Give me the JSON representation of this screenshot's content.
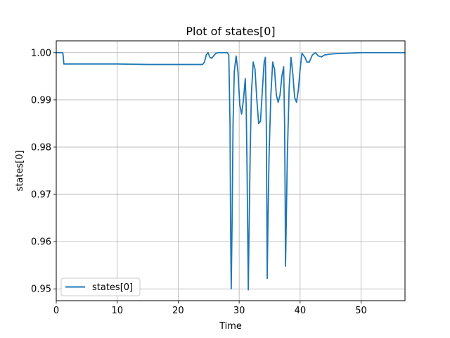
{
  "chart_data": {
    "type": "line",
    "title": "Plot of states[0]",
    "xlabel": "Time",
    "ylabel": "states[0]",
    "xlim": [
      0,
      57.2
    ],
    "ylim": [
      0.9475,
      1.0025
    ],
    "xticks": [
      0,
      10,
      20,
      30,
      40,
      50
    ],
    "yticks": [
      0.95,
      0.96,
      0.97,
      0.98,
      0.99,
      1.0
    ],
    "xtick_labels": [
      "0",
      "10",
      "20",
      "30",
      "40",
      "50"
    ],
    "ytick_labels": [
      "0.95",
      "0.96",
      "0.97",
      "0.98",
      "0.99",
      "1.00"
    ],
    "grid": true,
    "legend": {
      "position": "lower-left",
      "entries": [
        "states[0]"
      ]
    },
    "series": [
      {
        "name": "states[0]",
        "color": "#1f77b4",
        "x": [
          0,
          1.0,
          1.1,
          1.25,
          1.4,
          5,
          10,
          15,
          20,
          24.0,
          24.3,
          24.6,
          24.9,
          25.2,
          25.5,
          25.8,
          26.2,
          26.6,
          27.5,
          28.0,
          28.05,
          28.3,
          28.5,
          28.6,
          28.7,
          28.85,
          29.0,
          29.2,
          29.5,
          29.8,
          30.1,
          30.4,
          30.7,
          31.0,
          31.15,
          31.3,
          31.4,
          31.5,
          31.6,
          31.8,
          32.0,
          32.3,
          32.6,
          32.9,
          33.2,
          33.5,
          33.8,
          34.1,
          34.3,
          34.45,
          34.55,
          34.6,
          34.7,
          34.9,
          35.2,
          35.5,
          35.8,
          36.1,
          36.4,
          36.7,
          37.0,
          37.3,
          37.45,
          37.55,
          37.6,
          37.7,
          37.9,
          38.2,
          38.5,
          38.8,
          39.1,
          39.4,
          39.7,
          40.0,
          40.3,
          40.5,
          40.8,
          41.1,
          41.5,
          42.0,
          42.5,
          43.0,
          43.5,
          44.0,
          45.0,
          46.0,
          48.0,
          50.0,
          53.0,
          57.2
        ],
        "y": [
          1.0,
          1.0,
          0.9998,
          0.9976,
          0.9976,
          0.9976,
          0.9976,
          0.9975,
          0.9975,
          0.9975,
          0.998,
          0.9995,
          1.0,
          0.999,
          0.9988,
          0.9993,
          0.9999,
          1.0,
          1.0,
          1.0,
          0.99998,
          0.9995,
          0.985,
          0.962,
          0.95,
          0.965,
          0.985,
          0.996,
          0.9993,
          0.996,
          0.989,
          0.987,
          0.99,
          0.9945,
          0.989,
          0.975,
          0.962,
          0.9498,
          0.96,
          0.978,
          0.991,
          0.998,
          0.9965,
          0.99,
          0.985,
          0.9855,
          0.992,
          0.998,
          0.999,
          0.985,
          0.965,
          0.9522,
          0.962,
          0.978,
          0.991,
          0.998,
          0.9965,
          0.991,
          0.9895,
          0.991,
          0.995,
          0.997,
          0.985,
          0.968,
          0.9548,
          0.962,
          0.978,
          0.9925,
          0.999,
          0.9955,
          0.9905,
          0.9895,
          0.992,
          0.9965,
          0.9999,
          0.9995,
          0.999,
          0.998,
          0.998,
          0.9995,
          1.0,
          0.9993,
          0.9991,
          0.9995,
          0.9997,
          0.9998,
          0.9999,
          1.0,
          1.0,
          1.0
        ]
      }
    ]
  }
}
